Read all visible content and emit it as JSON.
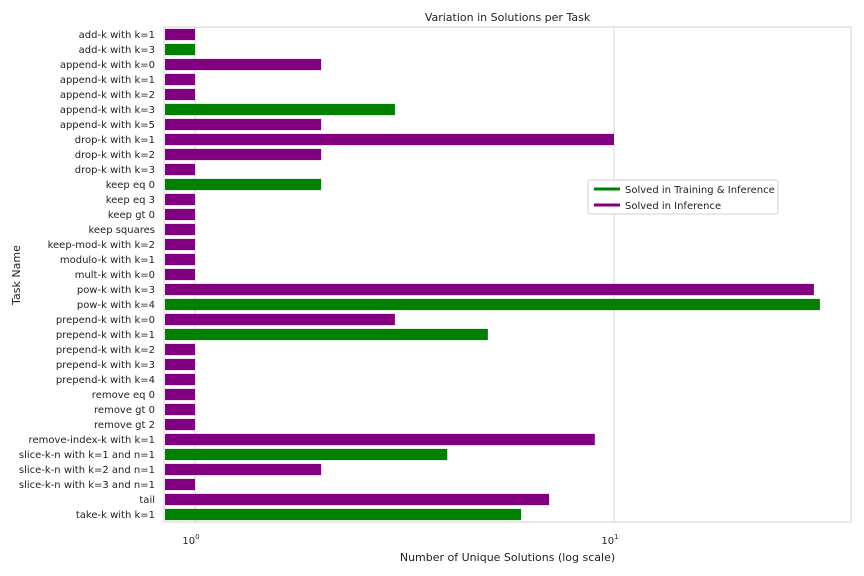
{
  "chart_data": {
    "type": "bar",
    "orientation": "horizontal",
    "title": "Variation in Solutions per Task",
    "xlabel": "Number of Unique Solutions (log scale)",
    "ylabel": "Task Name",
    "xscale": "log",
    "xlim": [
      0.9,
      30
    ],
    "xticks": [
      {
        "value": 1,
        "base": "10",
        "exp": "0"
      },
      {
        "value": 10,
        "base": "10",
        "exp": "1"
      }
    ],
    "grid": "vertical",
    "legend_position": "right",
    "colors": {
      "Solved in Training & Inference": "#008000",
      "Solved in Inference": "#800080"
    },
    "legend": [
      {
        "label": "Solved in Training & Inference",
        "color": "#008000"
      },
      {
        "label": "Solved in Inference",
        "color": "#800080"
      }
    ],
    "categories": [
      "add-k with k=1",
      "add-k with k=3",
      "append-k with k=0",
      "append-k with k=1",
      "append-k with k=2",
      "append-k with k=3",
      "append-k with k=5",
      "drop-k with k=1",
      "drop-k with k=2",
      "drop-k with k=3",
      "keep eq 0",
      "keep eq 3",
      "keep gt 0",
      "keep squares",
      "keep-mod-k with k=2",
      "modulo-k with k=1",
      "mult-k with k=0",
      "pow-k with k=3",
      "pow-k with k=4",
      "prepend-k with k=0",
      "prepend-k with k=1",
      "prepend-k with k=2",
      "prepend-k with k=3",
      "prepend-k with k=4",
      "remove eq 0",
      "remove gt 0",
      "remove gt 2",
      "remove-index-k with k=1",
      "slice-k-n with k=1 and n=1",
      "slice-k-n with k=2 and n=1",
      "slice-k-n with k=3 and n=1",
      "tail",
      "take-k with k=1"
    ],
    "values": [
      1,
      1,
      2,
      1,
      1,
      3,
      2,
      10,
      2,
      1,
      2,
      1,
      1,
      1,
      1,
      1,
      1,
      30,
      31,
      3,
      5,
      1,
      1,
      1,
      1,
      1,
      1,
      9,
      4,
      2,
      1,
      7,
      6
    ],
    "groups": [
      "Solved in Inference",
      "Solved in Training & Inference",
      "Solved in Inference",
      "Solved in Inference",
      "Solved in Inference",
      "Solved in Training & Inference",
      "Solved in Inference",
      "Solved in Inference",
      "Solved in Inference",
      "Solved in Inference",
      "Solved in Training & Inference",
      "Solved in Inference",
      "Solved in Inference",
      "Solved in Inference",
      "Solved in Inference",
      "Solved in Inference",
      "Solved in Inference",
      "Solved in Inference",
      "Solved in Training & Inference",
      "Solved in Inference",
      "Solved in Training & Inference",
      "Solved in Inference",
      "Solved in Inference",
      "Solved in Inference",
      "Solved in Inference",
      "Solved in Inference",
      "Solved in Inference",
      "Solved in Inference",
      "Solved in Training & Inference",
      "Solved in Inference",
      "Solved in Inference",
      "Solved in Inference",
      "Solved in Training & Inference"
    ]
  }
}
